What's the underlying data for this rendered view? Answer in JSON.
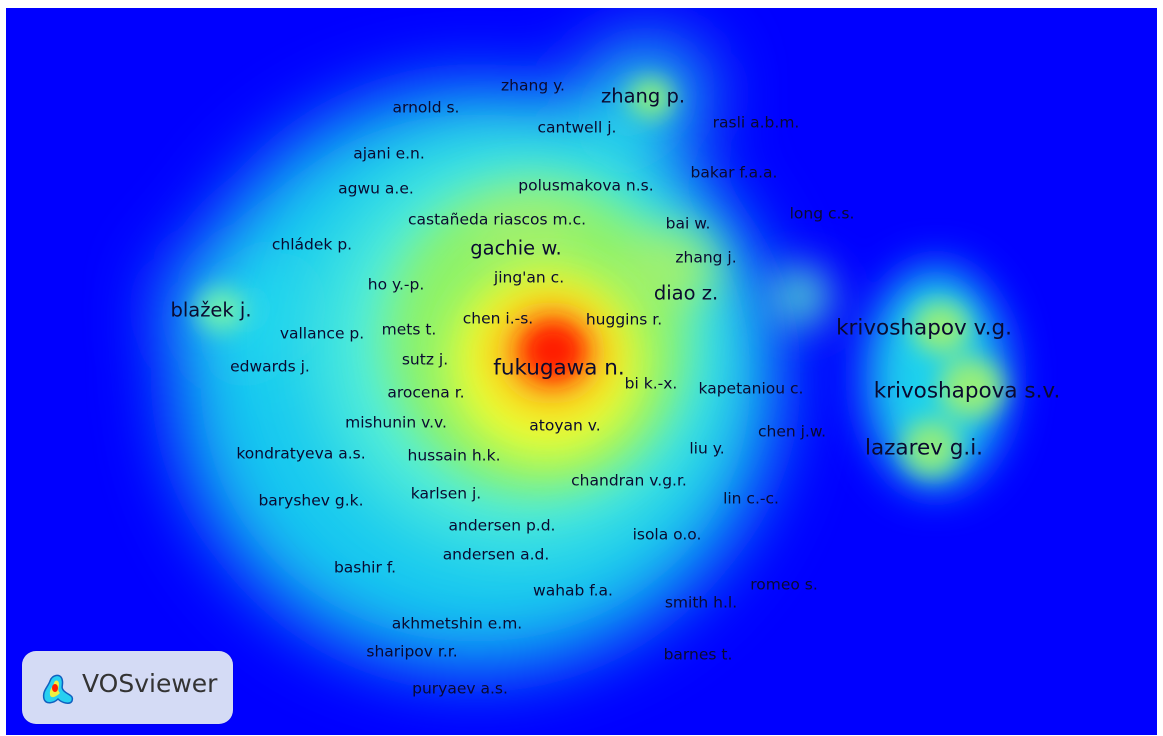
{
  "app": {
    "name": "VOSviewer"
  },
  "visualization": {
    "type": "density",
    "background": "#0000ff",
    "scale_colors": [
      "#0000ff",
      "#00ffff",
      "#00ff00",
      "#ffff00",
      "#ff0000"
    ]
  },
  "labels": [
    {
      "text": "zhang y.",
      "weight": 2
    },
    {
      "text": "zhang p.",
      "weight": 3
    },
    {
      "text": "arnold s.",
      "weight": 2
    },
    {
      "text": "cantwell j.",
      "weight": 2
    },
    {
      "text": "rasli a.b.m.",
      "weight": 2
    },
    {
      "text": "ajani e.n.",
      "weight": 2
    },
    {
      "text": "bakar f.a.a.",
      "weight": 2
    },
    {
      "text": "agwu a.e.",
      "weight": 2
    },
    {
      "text": "polusmakova n.s.",
      "weight": 2
    },
    {
      "text": "long c.s.",
      "weight": 2
    },
    {
      "text": "castañeda riascos m.c.",
      "weight": 2
    },
    {
      "text": "bai w.",
      "weight": 2
    },
    {
      "text": "chládek p.",
      "weight": 2
    },
    {
      "text": "gachie w.",
      "weight": 3
    },
    {
      "text": "zhang j.",
      "weight": 2
    },
    {
      "text": "jing'an c.",
      "weight": 2
    },
    {
      "text": "ho y.-p.",
      "weight": 2
    },
    {
      "text": "diao z.",
      "weight": 3
    },
    {
      "text": "blažek j.",
      "weight": 3
    },
    {
      "text": "chen i.-s.",
      "weight": 2
    },
    {
      "text": "huggins r.",
      "weight": 2
    },
    {
      "text": "vallance p.",
      "weight": 2
    },
    {
      "text": "mets t.",
      "weight": 2
    },
    {
      "text": "krivoshapov v.g.",
      "weight": 4
    },
    {
      "text": "sutz j.",
      "weight": 2
    },
    {
      "text": "edwards j.",
      "weight": 2
    },
    {
      "text": "fukugawa n.",
      "weight": 4
    },
    {
      "text": "bi k.-x.",
      "weight": 2
    },
    {
      "text": "kapetaniou c.",
      "weight": 2
    },
    {
      "text": "krivoshapova s.v.",
      "weight": 4
    },
    {
      "text": "arocena r.",
      "weight": 2
    },
    {
      "text": "mishunin v.v.",
      "weight": 2
    },
    {
      "text": "atoyan v.",
      "weight": 2
    },
    {
      "text": "chen j.w.",
      "weight": 2
    },
    {
      "text": "lazarev g.i.",
      "weight": 4
    },
    {
      "text": "kondratyeva a.s.",
      "weight": 2
    },
    {
      "text": "hussain h.k.",
      "weight": 2
    },
    {
      "text": "liu y.",
      "weight": 2
    },
    {
      "text": "chandran v.g.r.",
      "weight": 2
    },
    {
      "text": "karlsen j.",
      "weight": 2
    },
    {
      "text": "baryshev g.k.",
      "weight": 2
    },
    {
      "text": "lin c.-c.",
      "weight": 2
    },
    {
      "text": "andersen p.d.",
      "weight": 2
    },
    {
      "text": "isola o.o.",
      "weight": 2
    },
    {
      "text": "andersen a.d.",
      "weight": 2
    },
    {
      "text": "bashir f.",
      "weight": 2
    },
    {
      "text": "romeo s.",
      "weight": 2
    },
    {
      "text": "wahab f.a.",
      "weight": 2
    },
    {
      "text": "smith h.l.",
      "weight": 2
    },
    {
      "text": "akhmetshin e.m.",
      "weight": 2
    },
    {
      "text": "sharipov r.r.",
      "weight": 2
    },
    {
      "text": "barnes t.",
      "weight": 2
    },
    {
      "text": "puryaev a.s.",
      "weight": 2
    }
  ]
}
